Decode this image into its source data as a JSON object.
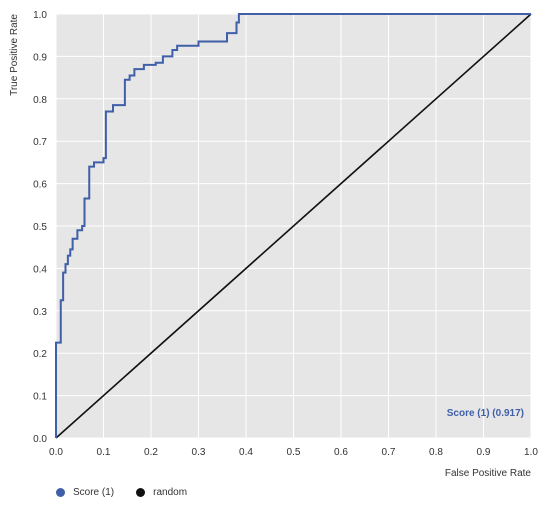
{
  "chart_data": {
    "type": "line",
    "xlabel": "False Positive Rate",
    "ylabel": "True Positive Rate",
    "xlim": [
      0,
      1
    ],
    "ylim": [
      0,
      1
    ],
    "xticks": [
      "0.0",
      "0.1",
      "0.2",
      "0.3",
      "0.4",
      "0.5",
      "0.6",
      "0.7",
      "0.8",
      "0.9",
      "1.0"
    ],
    "yticks": [
      "0.0",
      "0.1",
      "0.2",
      "0.3",
      "0.4",
      "0.5",
      "0.6",
      "0.7",
      "0.8",
      "0.9",
      "1.0"
    ],
    "grid": true,
    "legend_position": "bottom-left",
    "annotation": "Score (1) (0.917)",
    "series": [
      {
        "name": "Score (1)",
        "color": "#3f5fa8",
        "x": [
          0,
          0,
          0.01,
          0.01,
          0.015,
          0.015,
          0.02,
          0.02,
          0.025,
          0.025,
          0.03,
          0.03,
          0.035,
          0.035,
          0.045,
          0.045,
          0.055,
          0.055,
          0.06,
          0.06,
          0.07,
          0.07,
          0.08,
          0.08,
          0.1,
          0.1,
          0.105,
          0.105,
          0.12,
          0.12,
          0.145,
          0.145,
          0.155,
          0.155,
          0.165,
          0.165,
          0.185,
          0.185,
          0.21,
          0.21,
          0.225,
          0.225,
          0.245,
          0.245,
          0.255,
          0.255,
          0.3,
          0.3,
          0.36,
          0.36,
          0.38,
          0.38,
          0.385,
          0.385,
          1.0
        ],
        "y": [
          0,
          0.225,
          0.225,
          0.325,
          0.325,
          0.39,
          0.39,
          0.41,
          0.41,
          0.43,
          0.43,
          0.445,
          0.445,
          0.47,
          0.47,
          0.49,
          0.49,
          0.5,
          0.5,
          0.565,
          0.565,
          0.64,
          0.64,
          0.65,
          0.65,
          0.66,
          0.66,
          0.77,
          0.77,
          0.785,
          0.785,
          0.845,
          0.845,
          0.855,
          0.855,
          0.87,
          0.87,
          0.88,
          0.88,
          0.885,
          0.885,
          0.9,
          0.9,
          0.915,
          0.915,
          0.925,
          0.925,
          0.935,
          0.935,
          0.955,
          0.955,
          0.98,
          0.98,
          1.0,
          1.0
        ]
      },
      {
        "name": "random",
        "color": "#111111",
        "x": [
          0,
          1
        ],
        "y": [
          0,
          1
        ]
      }
    ]
  }
}
